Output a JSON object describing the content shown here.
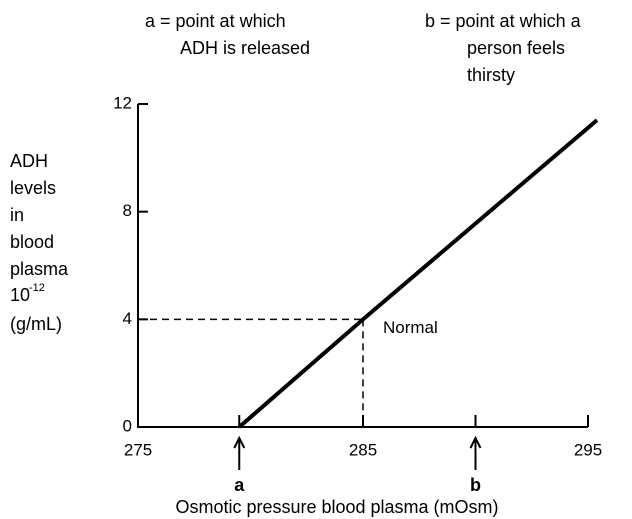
{
  "chart_data": {
    "type": "line",
    "x": [
      279.5,
      285,
      295.4
    ],
    "values": [
      0,
      4,
      11.4
    ],
    "color": "#000000",
    "xlim": [
      275,
      295
    ],
    "ylim": [
      0,
      12
    ],
    "xticks": [
      275,
      285,
      295
    ],
    "yticks": [
      0,
      4,
      8,
      12
    ],
    "grid": false,
    "xlabel": "Osmotic pressure blood plasma (mOsm)",
    "ylabel_lines": [
      "ADH",
      "levels",
      "in",
      "blood",
      "plasma"
    ],
    "ylabel_scale": {
      "base": "10",
      "exponent": "-12"
    },
    "ylabel_unit": "(g/mL)",
    "normal": {
      "text": "Normal",
      "x": 285,
      "y": 4
    },
    "markers": [
      {
        "label": "a",
        "x": 279.5
      },
      {
        "label": "b",
        "x": 290
      }
    ],
    "notes": [
      [
        "a = point at which",
        "ADH is released"
      ],
      [
        "b = point at which a",
        "person feels",
        "thirsty"
      ]
    ]
  }
}
